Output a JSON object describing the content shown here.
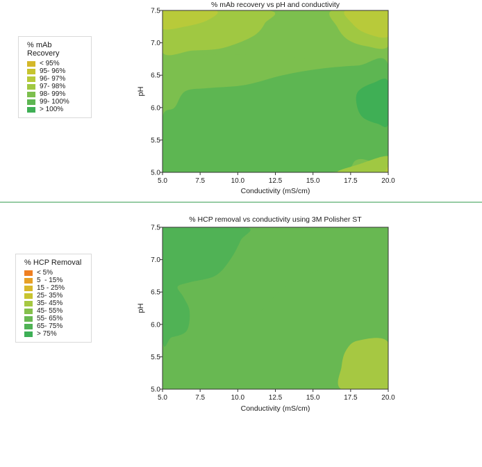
{
  "colors": {
    "divider": "#2f9a4a",
    "axis": "#333333"
  },
  "chart_data": [
    {
      "type": "contour",
      "title": "% mAb recovery vs pH and conductivity",
      "xlabel": "Conductivity (mS/cm)",
      "ylabel": "pH",
      "xlim": [
        5.0,
        20.0
      ],
      "ylim": [
        5.0,
        7.5
      ],
      "xticks": [
        "5.0",
        "7.5",
        "10.0",
        "12.5",
        "15.0",
        "17.5",
        "20.0"
      ],
      "yticks": [
        "5.0",
        "5.5",
        "6.0",
        "6.5",
        "7.0",
        "7.5"
      ],
      "legend": {
        "title": "% mAb Recovery",
        "entries": [
          {
            "label": "< 95%",
            "color": "#d4b82a"
          },
          {
            "label": "95- 96%",
            "color": "#c7c42e"
          },
          {
            "label": "96- 97%",
            "color": "#b8ca3a"
          },
          {
            "label": "97- 98%",
            "color": "#a0c842"
          },
          {
            "label": "98- 99%",
            "color": "#7cbf4e"
          },
          {
            "label": "99- 100%",
            "color": "#5db652"
          },
          {
            "label": "> 100%",
            "color": "#3faf55"
          }
        ]
      },
      "regions": [
        {
          "level": "98- 99%",
          "outline": [
            [
              5.0,
              6.8
            ],
            [
              7.5,
              6.82
            ],
            [
              10.5,
              6.82
            ],
            [
              13.5,
              6.78
            ],
            [
              16.0,
              6.73
            ],
            [
              20.0,
              6.75
            ],
            [
              20.0,
              5.25
            ],
            [
              16.0,
              5.25
            ],
            [
              13.0,
              5.25
            ],
            [
              9.0,
              5.25
            ],
            [
              5.0,
              5.25
            ]
          ]
        },
        {
          "level": "99- 100%",
          "outline": [
            [
              5.0,
              5.85
            ],
            [
              5.8,
              6.0
            ],
            [
              6.5,
              6.25
            ],
            [
              8.0,
              6.3
            ],
            [
              10.5,
              6.35
            ],
            [
              13.0,
              6.5
            ],
            [
              15.5,
              6.6
            ],
            [
              18.0,
              6.65
            ],
            [
              20.0,
              6.66
            ],
            [
              20.0,
              5.25
            ],
            [
              18.0,
              5.2
            ],
            [
              16.0,
              5.0
            ],
            [
              5.0,
              5.0
            ]
          ]
        },
        {
          "level": "97- 98%",
          "outline": [
            [
              5.0,
              7.5
            ],
            [
              12.0,
              7.5
            ],
            [
              11.8,
              7.3
            ],
            [
              11.0,
              7.1
            ],
            [
              9.0,
              6.92
            ],
            [
              7.0,
              6.88
            ],
            [
              5.0,
              6.85
            ]
          ]
        },
        {
          "level": "97- 98%",
          "outline": [
            [
              16.3,
              7.5
            ],
            [
              20.0,
              7.5
            ],
            [
              20.0,
              6.95
            ],
            [
              18.5,
              6.95
            ],
            [
              17.3,
              7.05
            ],
            [
              16.6,
              7.25
            ]
          ]
        },
        {
          "level": "96- 97%",
          "outline": [
            [
              5.0,
              7.5
            ],
            [
              8.5,
              7.5
            ],
            [
              8.0,
              7.35
            ],
            [
              6.5,
              7.25
            ],
            [
              5.0,
              7.22
            ]
          ]
        },
        {
          "level": "96- 97%",
          "outline": [
            [
              17.2,
              7.5
            ],
            [
              20.0,
              7.5
            ],
            [
              20.0,
              7.1
            ],
            [
              18.5,
              7.15
            ],
            [
              17.6,
              7.3
            ]
          ]
        },
        {
          "level": "> 100%",
          "outline": [
            [
              20.0,
              6.4
            ],
            [
              19.0,
              6.38
            ],
            [
              18.0,
              6.25
            ],
            [
              17.9,
              6.05
            ],
            [
              18.3,
              5.85
            ],
            [
              19.3,
              5.75
            ],
            [
              20.0,
              5.75
            ]
          ]
        },
        {
          "level": "97- 98%",
          "outline": [
            [
              16.7,
              5.0
            ],
            [
              18.0,
              5.12
            ],
            [
              20.0,
              5.25
            ],
            [
              20.0,
              5.0
            ]
          ]
        },
        {
          "level": "96- 97%",
          "outline": [
            [
              19.8,
              5.0
            ],
            [
              20.0,
              5.1
            ],
            [
              20.0,
              5.0
            ]
          ]
        }
      ]
    },
    {
      "type": "contour",
      "title": "% HCP removal vs conductivity using 3M Polisher ST",
      "xlabel": "Conductivity (mS/cm)",
      "ylabel": "pH",
      "xlim": [
        5.0,
        20.0
      ],
      "ylim": [
        5.0,
        7.5
      ],
      "xticks": [
        "5.0",
        "7.5",
        "10.0",
        "12.5",
        "15.0",
        "17.5",
        "20.0"
      ],
      "yticks": [
        "5.0",
        "5.5",
        "6.0",
        "6.5",
        "7.0",
        "7.5"
      ],
      "legend": {
        "title": "% HCP Removal",
        "entries": [
          {
            "label": "< 5%",
            "color": "#ef7f22"
          },
          {
            "label": "5  - 15%",
            "color": "#e7a026"
          },
          {
            "label": "15 - 25%",
            "color": "#d8b82a"
          },
          {
            "label": "25- 35%",
            "color": "#c8c430"
          },
          {
            "label": "35- 45%",
            "color": "#a6c842"
          },
          {
            "label": "45- 55%",
            "color": "#84c04c"
          },
          {
            "label": "55- 65%",
            "color": "#68b852"
          },
          {
            "label": "65- 75%",
            "color": "#50b255"
          },
          {
            "label": "> 75%",
            "color": "#3daf56"
          }
        ]
      },
      "regions": [
        {
          "level": "55- 65%",
          "outline": [
            [
              5.0,
              7.5
            ],
            [
              20.0,
              7.5
            ],
            [
              20.0,
              6.92
            ],
            [
              18.5,
              6.92
            ],
            [
              16.5,
              6.9
            ],
            [
              15.0,
              6.8
            ],
            [
              13.0,
              6.55
            ],
            [
              11.5,
              6.2
            ],
            [
              10.2,
              5.98
            ],
            [
              9.0,
              5.9
            ],
            [
              7.0,
              5.8
            ],
            [
              5.0,
              5.75
            ]
          ]
        },
        {
          "level": "65- 75%",
          "outline": [
            [
              5.0,
              7.5
            ],
            [
              10.5,
              7.5
            ],
            [
              10.2,
              7.3
            ],
            [
              9.5,
              7.0
            ],
            [
              8.5,
              6.75
            ],
            [
              6.8,
              6.65
            ],
            [
              6.0,
              6.58
            ],
            [
              6.4,
              6.42
            ],
            [
              6.8,
              6.2
            ],
            [
              6.6,
              5.9
            ],
            [
              5.6,
              5.8
            ],
            [
              5.0,
              5.78
            ]
          ]
        },
        {
          "level": "35- 45%",
          "outline": [
            [
              20.0,
              5.72
            ],
            [
              18.0,
              5.75
            ],
            [
              17.2,
              5.6
            ],
            [
              16.9,
              5.35
            ],
            [
              16.9,
              5.0
            ],
            [
              20.0,
              5.0
            ]
          ]
        }
      ]
    }
  ]
}
